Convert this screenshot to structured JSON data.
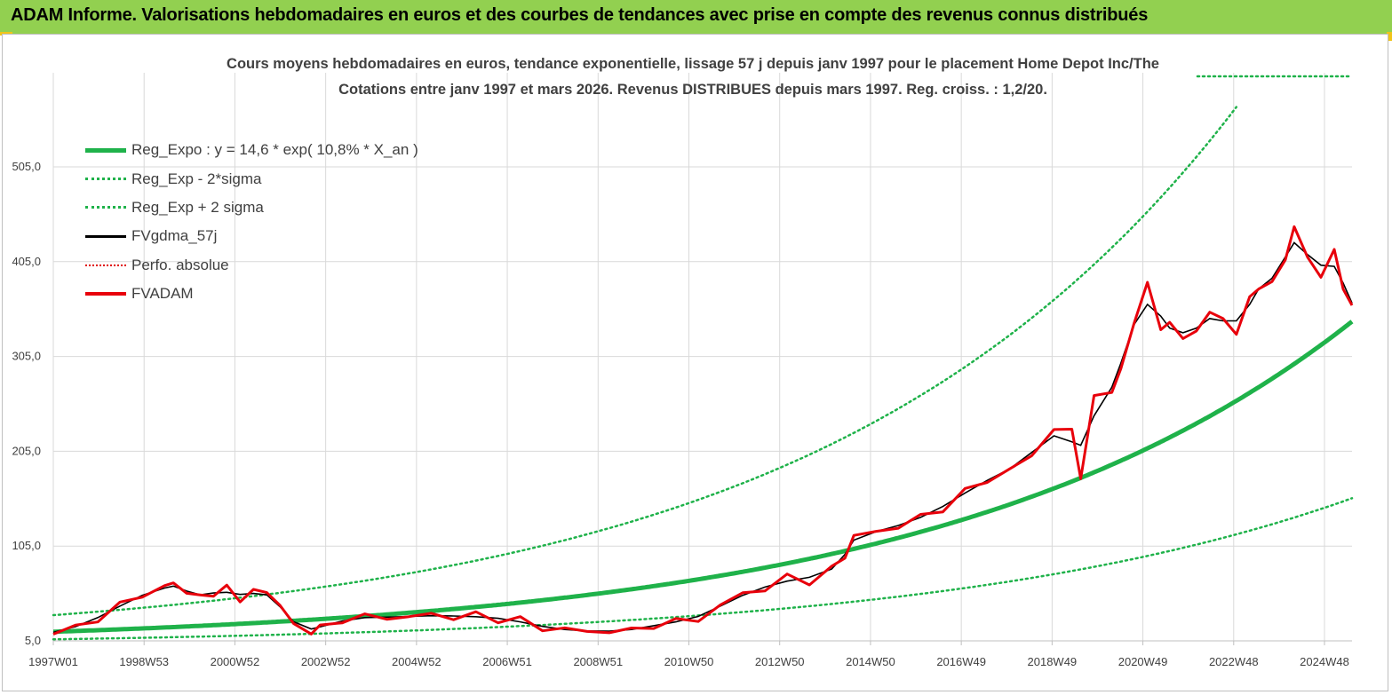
{
  "banner": {
    "text": "ADAM Informe. Valorisations hebdomadaires en euros et des courbes de tendances avec prise en compte des revenus connus distribués"
  },
  "chart_data": {
    "type": "line",
    "title": "Cours moyens hebdomadaires en euros, tendance exponentielle, lissage 57 j depuis janv 1997 pour le placement Home Depot Inc/The",
    "subtitle": "Cotations entre janv 1997 et mars 2026. Revenus DISTRIBUES depuis mars 1997. Reg. croiss. : 1,2/20.",
    "xlabel": "",
    "ylabel": "",
    "ylim": [
      5.0,
      560.0
    ],
    "y_ticks": [
      "5,0",
      "105,0",
      "205,0",
      "305,0",
      "405,0",
      "505,0"
    ],
    "x_ticks": [
      "1997W01",
      "1998W53",
      "2000W52",
      "2002W52",
      "2004W52",
      "2006W51",
      "2008W51",
      "2010W50",
      "2012W50",
      "2014W50",
      "2016W49",
      "2018W49",
      "2020W49",
      "2022W48",
      "2024W48"
    ],
    "grid": true,
    "legend_position": "top-left",
    "x_range": [
      1997.0,
      2026.2
    ],
    "regression": {
      "a": 14.6,
      "rate": 0.108,
      "sigma_factor": 2.2
    },
    "series": [
      {
        "name": "Reg_Expo : y = 14,6 * exp( 10,8% *  X_an )",
        "color": "#1fb24a",
        "style": "solid-thick"
      },
      {
        "name": "Reg_Exp - 2*sigma",
        "color": "#1fb24a",
        "style": "dotted"
      },
      {
        "name": "Reg_Exp + 2 sigma",
        "color": "#1fb24a",
        "style": "dotted"
      },
      {
        "name": "FVgdma_57j",
        "color": "#000000",
        "style": "solid"
      },
      {
        "name": "Perfo. absolue",
        "color": "#e00000",
        "style": "dotted"
      },
      {
        "name": "FVADAM",
        "color": "#e8000b",
        "style": "solid-thick",
        "x": [
          1997.0,
          1997.5,
          1998.0,
          1998.5,
          1999.0,
          1999.5,
          1999.7,
          2000.0,
          2000.3,
          2000.6,
          2000.9,
          2001.2,
          2001.5,
          2001.8,
          2002.1,
          2002.4,
          2002.8,
          2003.0,
          2003.5,
          2004.0,
          2004.5,
          2005.0,
          2005.5,
          2006.0,
          2006.5,
          2007.0,
          2007.5,
          2008.0,
          2008.5,
          2009.0,
          2009.5,
          2010.0,
          2010.5,
          2011.0,
          2011.5,
          2012.0,
          2012.5,
          2013.0,
          2013.5,
          2014.0,
          2014.5,
          2014.8,
          2015.0,
          2015.5,
          2016.0,
          2016.5,
          2017.0,
          2017.5,
          2018.0,
          2018.5,
          2019.0,
          2019.5,
          2019.9,
          2020.1,
          2020.4,
          2020.8,
          2021.0,
          2021.3,
          2021.6,
          2021.9,
          2022.1,
          2022.4,
          2022.7,
          2023.0,
          2023.3,
          2023.6,
          2023.9,
          2024.1,
          2024.4,
          2024.7,
          2024.9,
          2025.2,
          2025.5,
          2025.8,
          2026.0,
          2026.2
        ],
        "values": [
          12,
          20,
          28,
          42,
          55,
          60,
          68,
          55,
          52,
          55,
          60,
          50,
          56,
          58,
          42,
          22,
          15,
          18,
          28,
          30,
          30,
          30,
          33,
          30,
          32,
          28,
          27,
          18,
          18,
          14,
          16,
          15,
          22,
          25,
          28,
          42,
          55,
          60,
          72,
          68,
          80,
          95,
          115,
          120,
          126,
          135,
          145,
          162,
          175,
          185,
          200,
          230,
          225,
          180,
          260,
          270,
          290,
          340,
          385,
          330,
          345,
          320,
          335,
          350,
          345,
          330,
          365,
          380,
          380,
          410,
          440,
          410,
          390,
          415,
          380,
          355
        ]
      }
    ]
  }
}
